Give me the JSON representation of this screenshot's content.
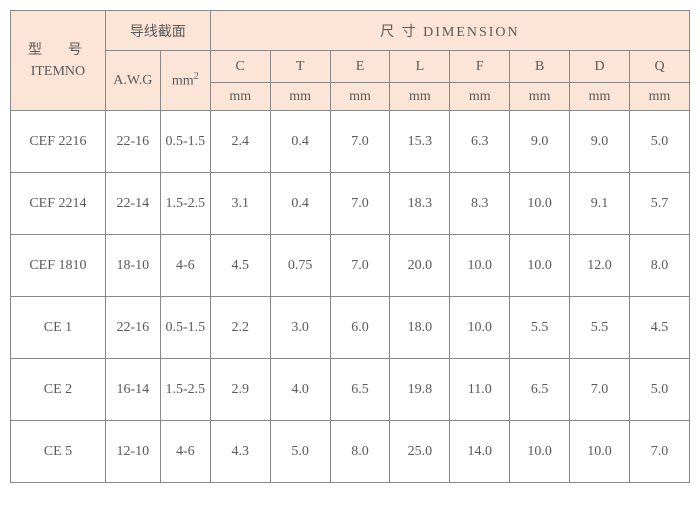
{
  "header": {
    "model_cn": "型　号",
    "model_en": "ITEMNO",
    "wire_section": "导线截面",
    "dimension": "尺 寸 DIMENSION",
    "awg": "A.W.G",
    "mm2": "mm",
    "mm2_sup": "2",
    "unit": "mm",
    "dim_labels": [
      "C",
      "T",
      "E",
      "L",
      "F",
      "B",
      "D",
      "Q"
    ]
  },
  "styling": {
    "header_bg": "#fce4d6",
    "border_color": "#888888",
    "text_color": "#5a5a5a",
    "font_family": "SimSun",
    "font_size": 14,
    "data_row_height": 62,
    "col_widths": {
      "itemno": 95,
      "awg": 55,
      "mm2": 50,
      "dim": 60
    }
  },
  "rows": [
    {
      "item": "CEF 2216",
      "awg": "22-16",
      "mm2": "0.5-1.5",
      "dims": [
        "2.4",
        "0.4",
        "7.0",
        "15.3",
        "6.3",
        "9.0",
        "9.0",
        "5.0"
      ]
    },
    {
      "item": "CEF 2214",
      "awg": "22-14",
      "mm2": "1.5-2.5",
      "dims": [
        "3.1",
        "0.4",
        "7.0",
        "18.3",
        "8.3",
        "10.0",
        "9.1",
        "5.7"
      ]
    },
    {
      "item": "CEF 1810",
      "awg": "18-10",
      "mm2": "4-6",
      "dims": [
        "4.5",
        "0.75",
        "7.0",
        "20.0",
        "10.0",
        "10.0",
        "12.0",
        "8.0"
      ]
    },
    {
      "item": "CE 1",
      "awg": "22-16",
      "mm2": "0.5-1.5",
      "dims": [
        "2.2",
        "3.0",
        "6.0",
        "18.0",
        "10.0",
        "5.5",
        "5.5",
        "4.5"
      ]
    },
    {
      "item": "CE 2",
      "awg": "16-14",
      "mm2": "1.5-2.5",
      "dims": [
        "2.9",
        "4.0",
        "6.5",
        "19.8",
        "11.0",
        "6.5",
        "7.0",
        "5.0"
      ]
    },
    {
      "item": "CE 5",
      "awg": "12-10",
      "mm2": "4-6",
      "dims": [
        "4.3",
        "5.0",
        "8.0",
        "25.0",
        "14.0",
        "10.0",
        "10.0",
        "7.0"
      ]
    }
  ]
}
